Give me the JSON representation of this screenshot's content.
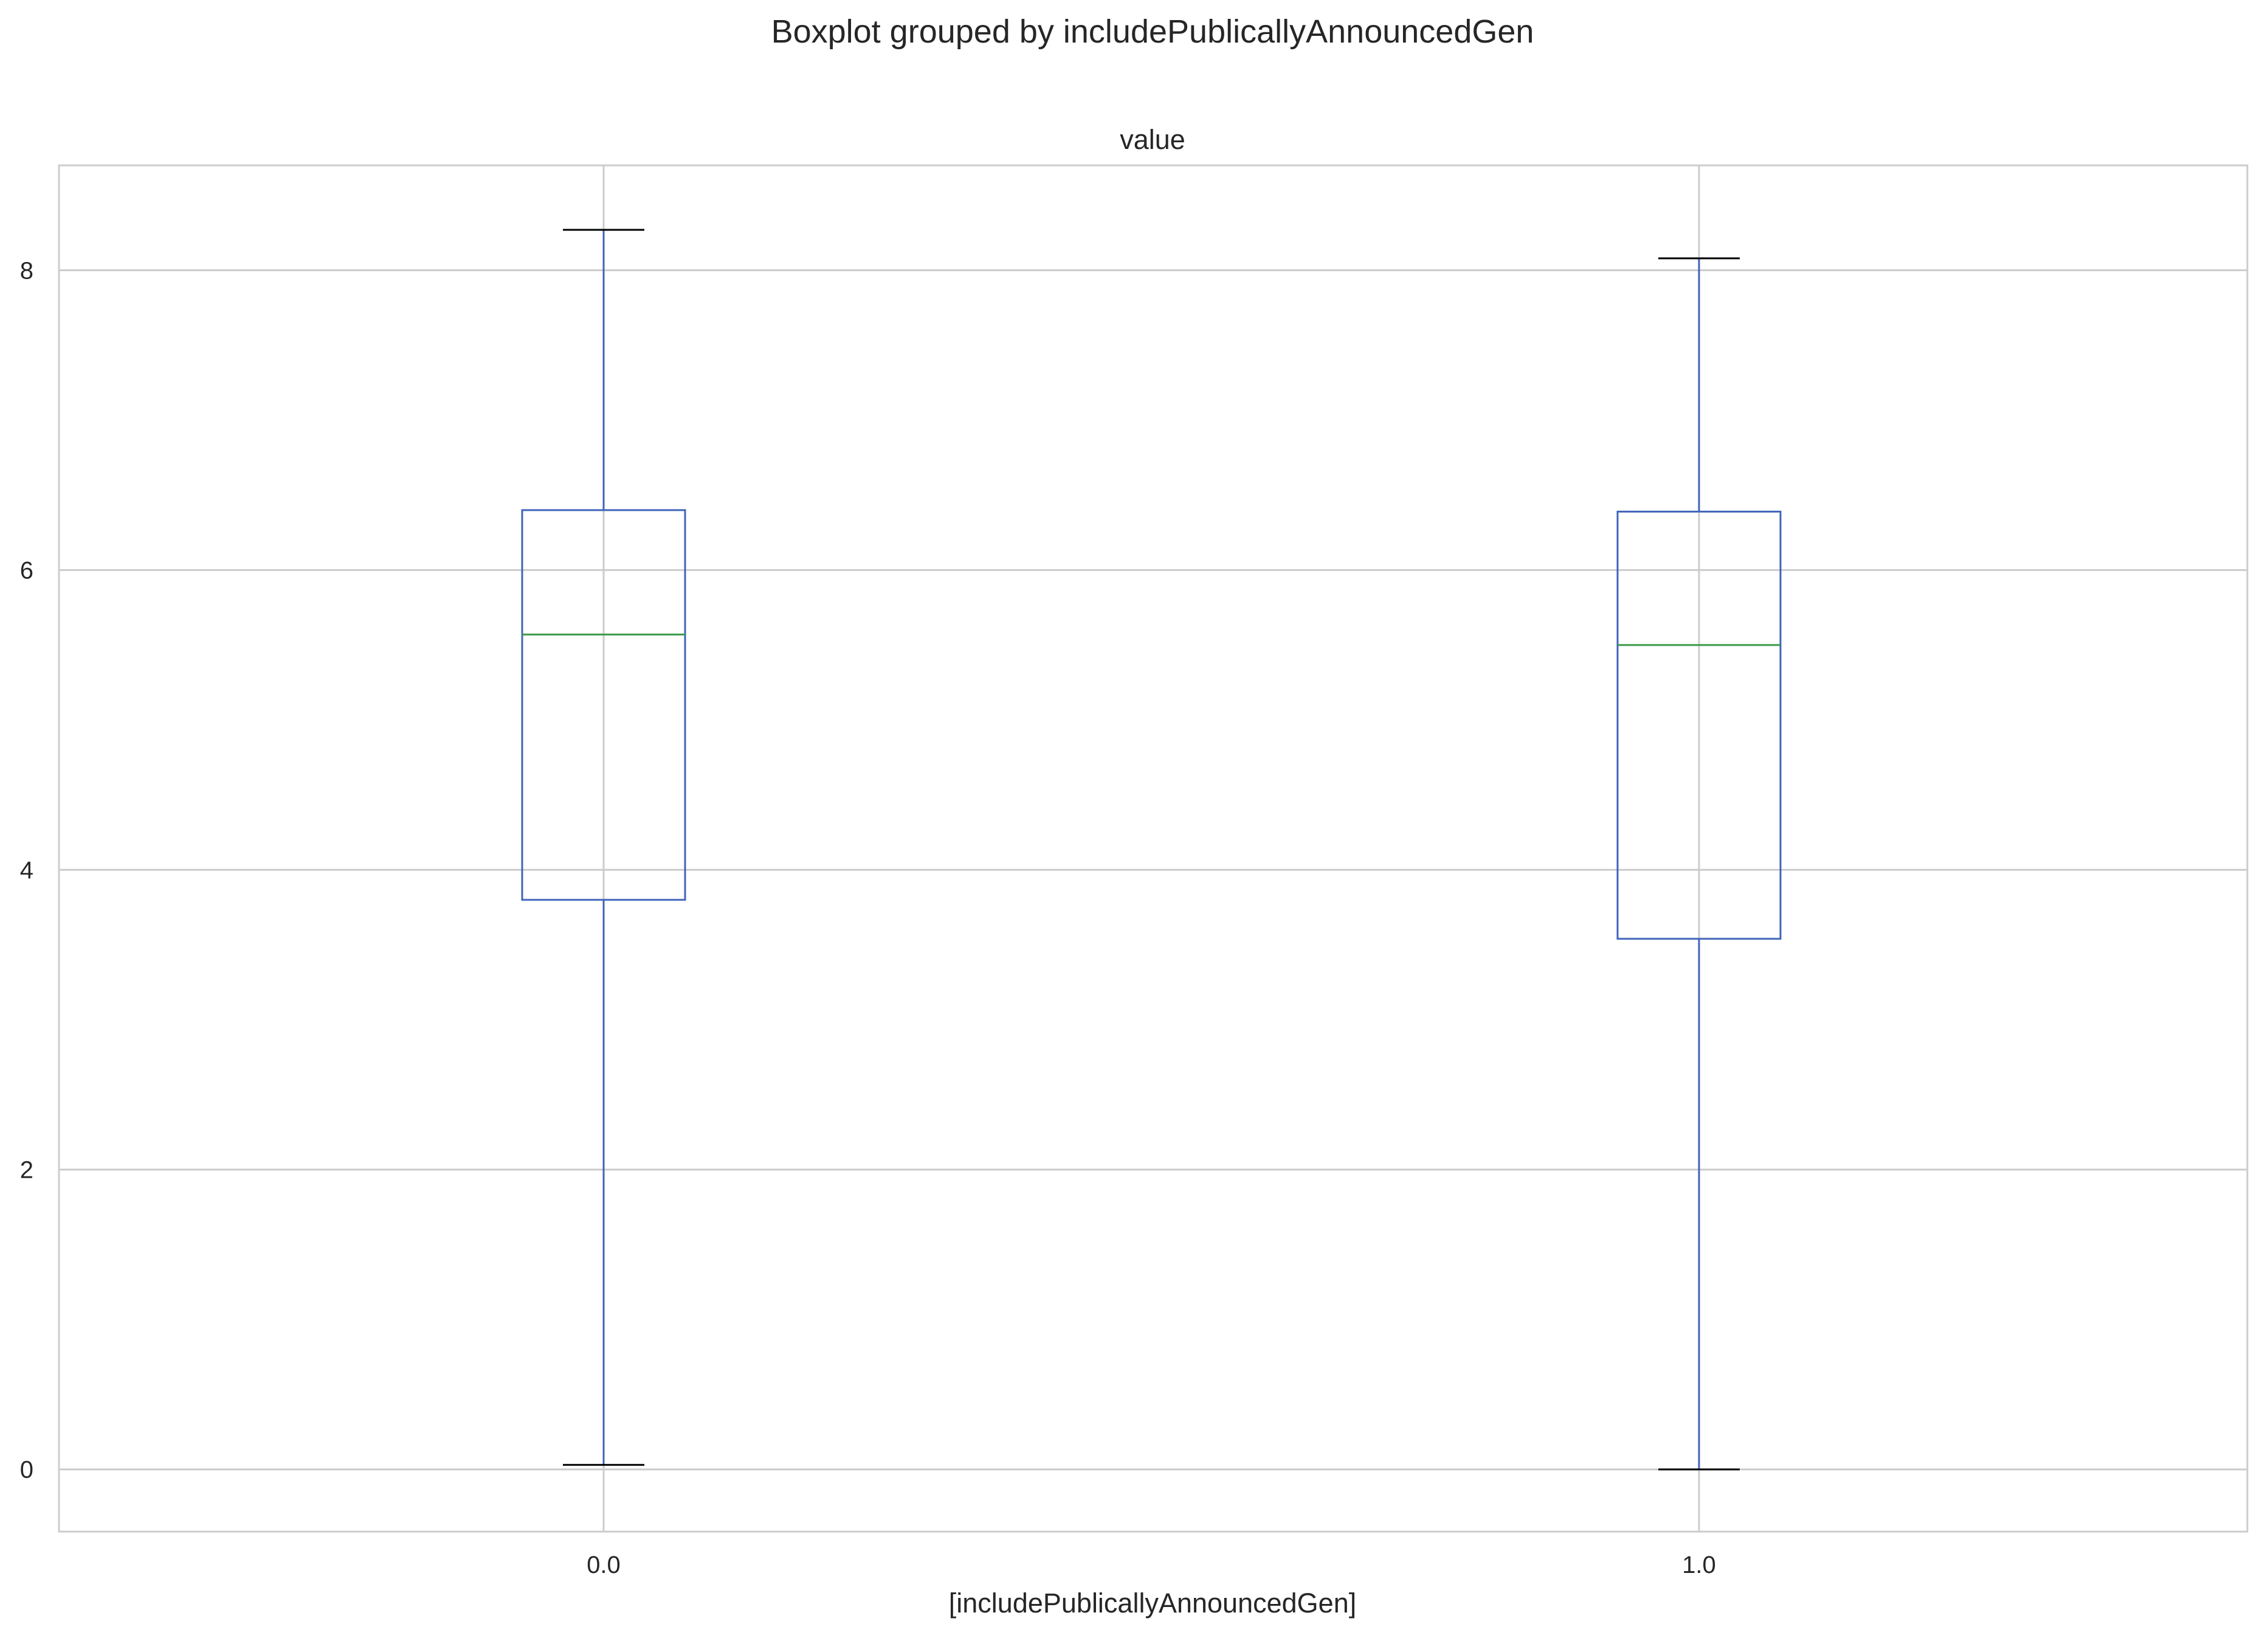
{
  "figure": {
    "suptitle": "Boxplot grouped by includePublicallyAnnouncedGen"
  },
  "chart_data": {
    "type": "boxplot",
    "title": "value",
    "xlabel": "[includePublicallyAnnouncedGen]",
    "ylabel": "",
    "categories": [
      "0.0",
      "1.0"
    ],
    "boxes": [
      {
        "category": "0.0",
        "whisker_low": 0.03,
        "q1": 3.8,
        "median": 5.57,
        "q3": 6.4,
        "whisker_high": 8.27
      },
      {
        "category": "1.0",
        "whisker_low": 0.0,
        "q1": 3.54,
        "median": 5.5,
        "q3": 6.39,
        "whisker_high": 8.08
      }
    ],
    "ylim": [
      -0.415,
      8.7
    ],
    "yticks": [
      0,
      2,
      4,
      6,
      8
    ],
    "ytick_labels": [
      "0",
      "2",
      "4",
      "6",
      "8"
    ],
    "grid": true,
    "colors": {
      "box": "#4064b9",
      "median": "#3a9a47",
      "whisker": "#4064b9",
      "cap": "#000000",
      "grid": "#cccccc",
      "spine": "#cccccc",
      "text": "#262626"
    }
  }
}
